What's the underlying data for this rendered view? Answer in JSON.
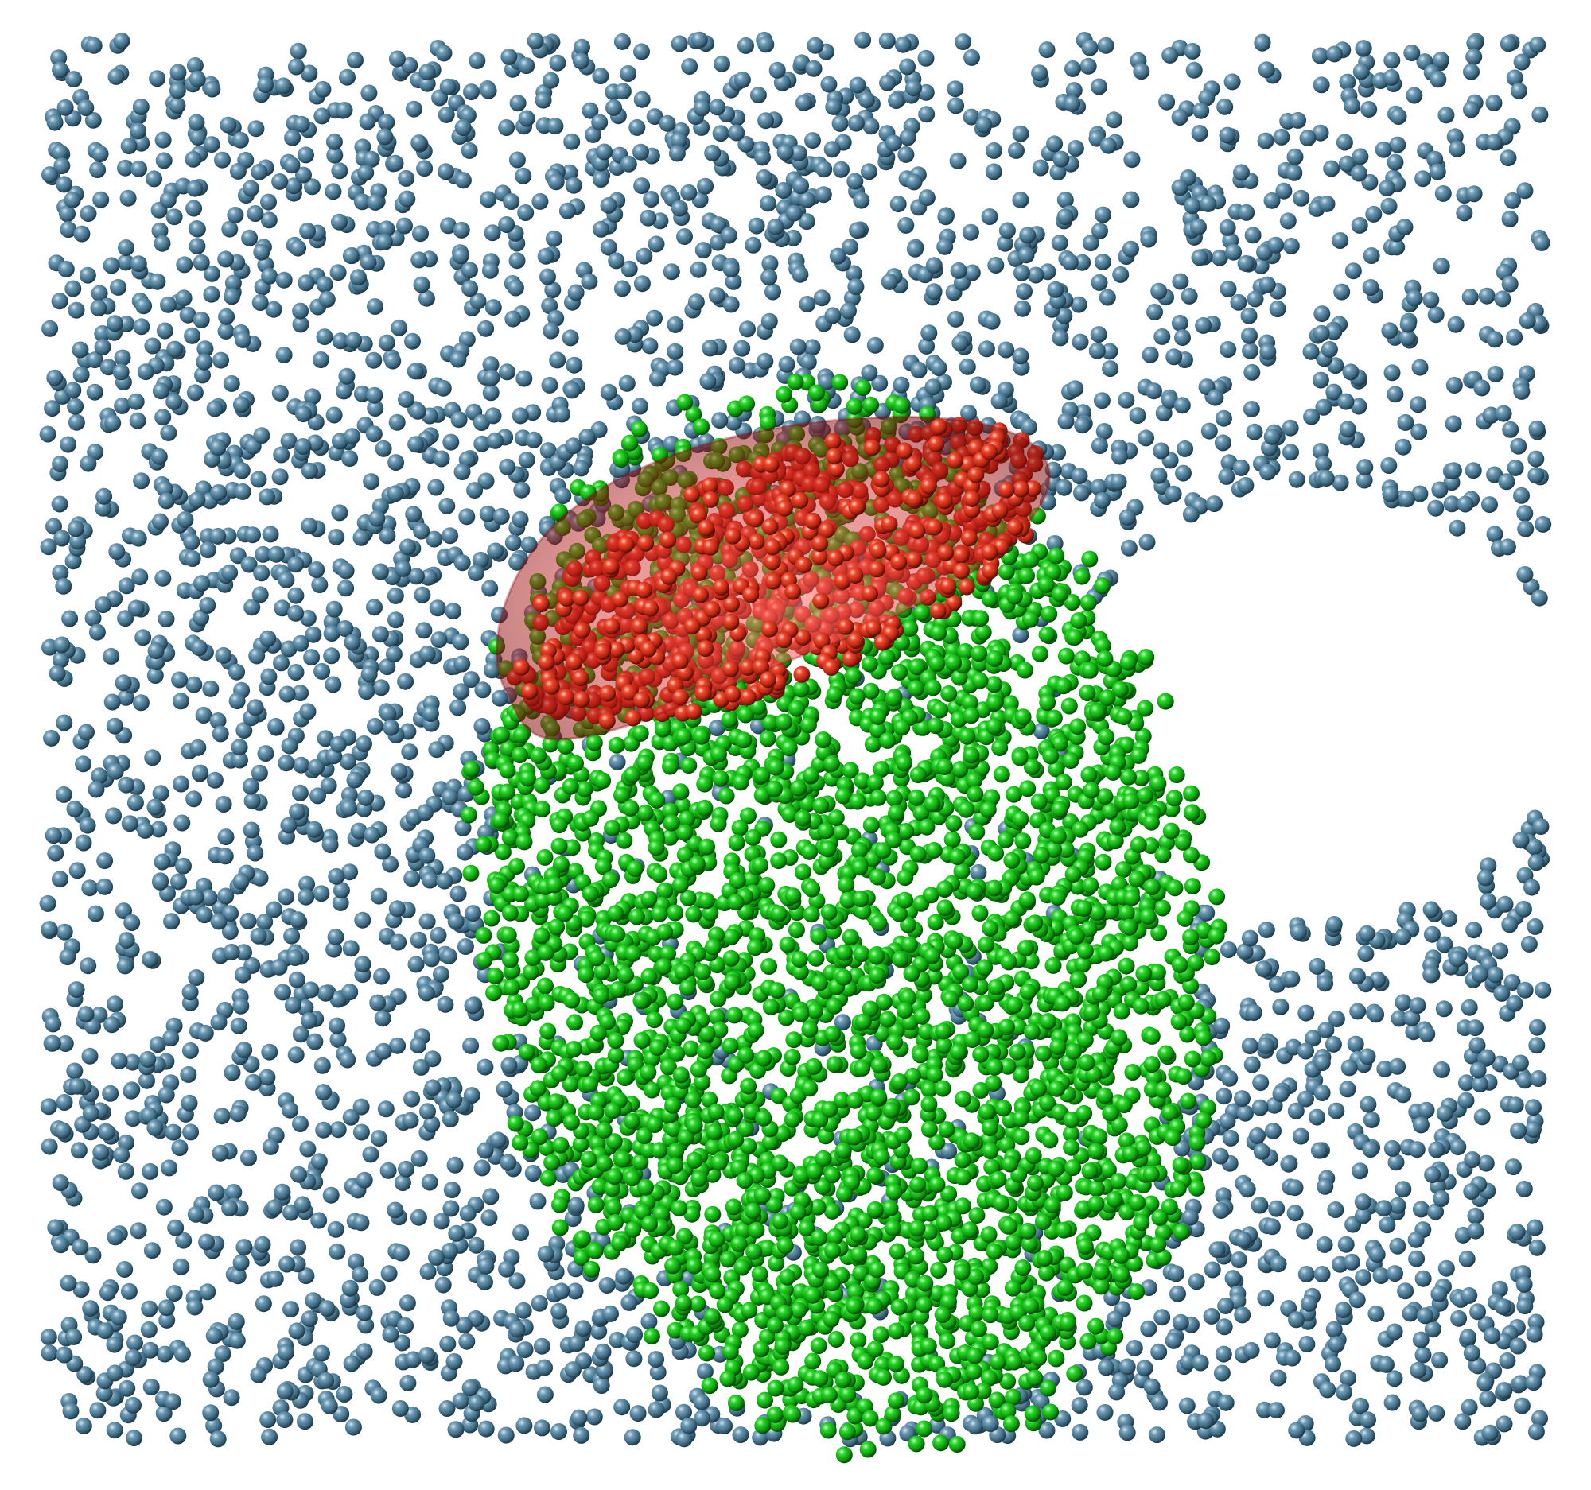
{
  "scene": {
    "particle_groups": [
      {
        "name": "solvent-particles",
        "color": "#4f7e98",
        "shade": "#22404f",
        "highlight": "#c9dbe6"
      },
      {
        "name": "cluster-particles",
        "color": "#12b812",
        "shade": "#064f06",
        "highlight": "#b8ffb8"
      },
      {
        "name": "core-particles",
        "color": "#e0301c",
        "shade": "#5a1008",
        "highlight": "#ffc4b8"
      }
    ],
    "core_surface_color": "#c01818",
    "background": "#ffffff"
  }
}
